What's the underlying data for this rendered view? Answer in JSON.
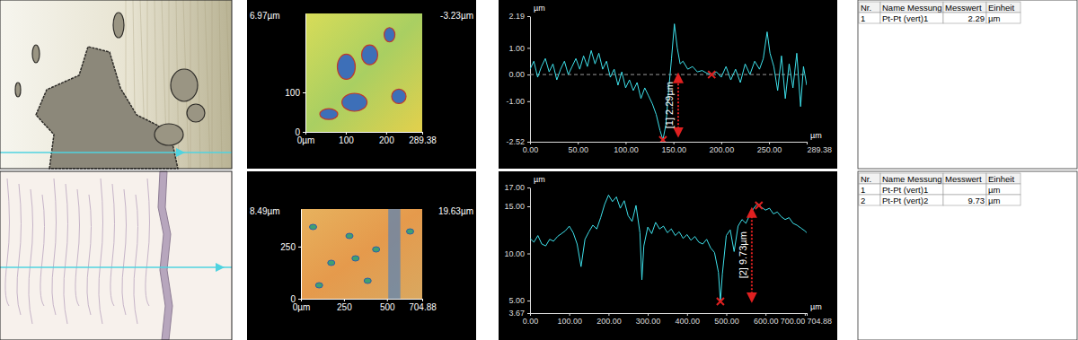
{
  "chart_data": [
    {
      "type": "line",
      "xlabel": "µm",
      "ylabel": "µm",
      "color": "#3ee0ea",
      "xlim": [
        0,
        289.38
      ],
      "ylim": [
        -2.52,
        2.19
      ],
      "xticks": [
        {
          "value": 0,
          "label": "0.00"
        },
        {
          "value": 50,
          "label": "50.00"
        },
        {
          "value": 100,
          "label": "100.00"
        },
        {
          "value": 150,
          "label": "150.00"
        },
        {
          "value": 200,
          "label": "200.00"
        },
        {
          "value": 250,
          "label": "250.00"
        },
        289.38
      ],
      "yticks": [
        -2.52,
        {
          "value": -1,
          "label": "-1.00"
        },
        {
          "value": 0,
          "label": "0.00"
        },
        {
          "value": 1,
          "label": "1.00"
        },
        2.19
      ],
      "reference_y": 0,
      "x": [
        0,
        4,
        8,
        12,
        16,
        20,
        24,
        28,
        32,
        36,
        40,
        44,
        48,
        52,
        56,
        60,
        64,
        68,
        72,
        76,
        80,
        84,
        88,
        92,
        96,
        100,
        104,
        108,
        112,
        116,
        120,
        124,
        128,
        132,
        136,
        139,
        142,
        145,
        148,
        151,
        154,
        157,
        160,
        165,
        170,
        175,
        180,
        185,
        190,
        195,
        200,
        205,
        210,
        215,
        220,
        225,
        230,
        235,
        240,
        244,
        248,
        251,
        255,
        259,
        263,
        267,
        271,
        275,
        279,
        283,
        286,
        289.38
      ],
      "values": [
        0.2,
        0.5,
        -0.1,
        0.3,
        0.6,
        0.1,
        0.4,
        -0.2,
        0.2,
        0.5,
        0.0,
        0.3,
        0.6,
        0.2,
        0.7,
        0.3,
        0.9,
        0.4,
        0.8,
        0.2,
        0.5,
        -0.1,
        0.2,
        -0.4,
        0.1,
        -0.5,
        -0.2,
        -0.6,
        -0.3,
        -0.9,
        -0.5,
        -0.8,
        -1.1,
        -1.5,
        -2.1,
        -2.45,
        -1.9,
        -0.6,
        0.6,
        1.9,
        1.0,
        0.4,
        0.5,
        0.2,
        0.3,
        0.1,
        0.15,
        0.05,
        0.0,
        0.1,
        -0.1,
        0.3,
        -0.2,
        0.2,
        -0.3,
        0.4,
        0.0,
        0.5,
        0.2,
        0.6,
        1.6,
        0.8,
        0.3,
        -0.6,
        0.7,
        -0.9,
        0.4,
        -0.5,
        0.8,
        -1.2,
        0.3,
        -0.4
      ],
      "annotations": [
        {
          "text": "[1] 2.29µm",
          "x": 155,
          "y_from": -2.29,
          "y_to": 0
        }
      ],
      "markers": [
        {
          "x": 139,
          "y": -2.45
        },
        {
          "x": 190,
          "y": 0
        }
      ]
    },
    {
      "type": "line",
      "xlabel": "µm",
      "ylabel": "µm",
      "color": "#3ee0ea",
      "xlim": [
        0,
        704.88
      ],
      "ylim": [
        3.67,
        17
      ],
      "xticks": [
        {
          "value": 0,
          "label": "0.00"
        },
        {
          "value": 100,
          "label": "100.00"
        },
        {
          "value": 200,
          "label": "200.00"
        },
        {
          "value": 300,
          "label": "300.00"
        },
        {
          "value": 400,
          "label": "400.00"
        },
        {
          "value": 500,
          "label": "500.00"
        },
        {
          "value": 600,
          "label": "600.00"
        },
        {
          "value": 700,
          "label": "700.00"
        },
        704.88
      ],
      "yticks": [
        3.67,
        {
          "value": 5,
          "label": "5.00"
        },
        {
          "value": 10,
          "label": "10.00"
        },
        {
          "value": 15,
          "label": "15.00"
        },
        {
          "value": 17,
          "label": "17.00"
        }
      ],
      "x": [
        0,
        10,
        20,
        30,
        40,
        50,
        60,
        70,
        80,
        90,
        100,
        110,
        120,
        130,
        140,
        150,
        160,
        170,
        180,
        190,
        200,
        210,
        220,
        230,
        240,
        250,
        260,
        270,
        280,
        285,
        290,
        300,
        310,
        320,
        330,
        340,
        350,
        360,
        370,
        380,
        390,
        400,
        410,
        420,
        430,
        440,
        450,
        460,
        470,
        480,
        485,
        490,
        500,
        510,
        520,
        530,
        540,
        550,
        560,
        570,
        580,
        590,
        600,
        610,
        620,
        630,
        640,
        650,
        660,
        670,
        680,
        690,
        700,
        704.88
      ],
      "values": [
        11.6,
        11.2,
        11.9,
        11.0,
        10.8,
        11.5,
        11.3,
        11.8,
        12.1,
        12.4,
        12.9,
        12.2,
        11.0,
        8.6,
        11.5,
        12.3,
        13.0,
        12.6,
        13.8,
        15.2,
        16.2,
        15.5,
        16.0,
        14.8,
        15.6,
        14.0,
        13.4,
        15.1,
        12.2,
        7.2,
        10.8,
        12.8,
        12.1,
        13.3,
        12.6,
        12.9,
        12.2,
        12.6,
        11.9,
        12.3,
        11.6,
        12.0,
        11.4,
        11.8,
        11.2,
        11.0,
        11.5,
        10.6,
        10.1,
        8.0,
        4.9,
        7.8,
        11.9,
        12.5,
        10.2,
        12.9,
        13.6,
        13.2,
        14.1,
        14.8,
        15.3,
        14.9,
        14.6,
        14.8,
        14.2,
        14.4,
        13.9,
        13.6,
        13.8,
        13.2,
        13.0,
        12.7,
        12.4,
        12.2
      ],
      "annotations": [
        {
          "text": "[2] 9.73µm",
          "x": 565,
          "y_from": 4.97,
          "y_to": 14.7
        }
      ],
      "markers": [
        {
          "x": 485,
          "y": 4.9
        },
        {
          "x": 583,
          "y": 15.1
        }
      ]
    }
  ],
  "surfaces": [
    {
      "xlim": [
        0,
        289.38
      ],
      "ylim": [
        0,
        300
      ],
      "xticks": [
        {
          "value": 0,
          "label": "0µm"
        },
        100,
        200,
        289.38
      ],
      "yticks": [
        0,
        100
      ],
      "top_left_label": "6.97µm",
      "top_right_label": "-3.23µm"
    },
    {
      "xlim": [
        0,
        704.88
      ],
      "ylim": [
        0,
        430
      ],
      "xticks": [
        {
          "value": 0,
          "label": "0µm"
        },
        250,
        500,
        704.88
      ],
      "yticks": [
        0,
        250
      ],
      "top_left_label": "8.49µm",
      "top_right_label": "19.63µm"
    }
  ],
  "tables": [
    {
      "columns": [
        "Nr.",
        "Name Messung",
        "Messwert",
        "Einheit"
      ],
      "rows": [
        [
          "1",
          "Pt-Pt (vert)1",
          "2.29",
          "µm"
        ]
      ]
    },
    {
      "columns": [
        "Nr.",
        "Name Messung",
        "Messwert",
        "Einheit"
      ],
      "rows": [
        [
          "1",
          "Pt-Pt (vert)1",
          null,
          "µm"
        ],
        [
          "2",
          "Pt-Pt (vert)2",
          "9.73",
          "µm"
        ]
      ]
    }
  ]
}
